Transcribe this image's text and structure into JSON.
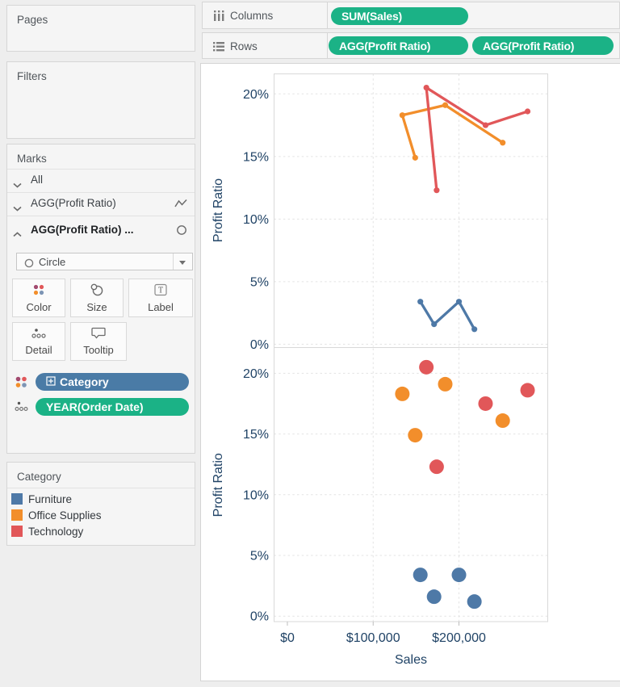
{
  "shelves": {
    "columns_label": "Columns",
    "rows_label": "Rows",
    "columns_pills": [
      "SUM(Sales)"
    ],
    "rows_pills": [
      "AGG(Profit Ratio)",
      "AGG(Profit Ratio)"
    ]
  },
  "cards": {
    "pages_title": "Pages",
    "filters_title": "Filters",
    "marks": {
      "title": "Marks",
      "layers": [
        {
          "label": "All",
          "mark_icon": "none"
        },
        {
          "label": "AGG(Profit Ratio)",
          "mark_icon": "line"
        },
        {
          "label": "AGG(Profit Ratio) ...",
          "mark_icon": "circle"
        }
      ],
      "mark_type_value": "Circle",
      "buttons": [
        "Color",
        "Size",
        "Label",
        "Detail",
        "Tooltip"
      ],
      "pills": [
        {
          "label": "Category",
          "expand_glyph": "⊞",
          "color": "#4a7ba6",
          "left_icon": "color-dots-icon"
        },
        {
          "label": "YEAR(Order Date)",
          "color": "#1bb286",
          "left_icon": "detail-dots-icon"
        }
      ]
    },
    "legend": {
      "title": "Category",
      "items": [
        {
          "label": "Furniture",
          "color": "#4e79a7"
        },
        {
          "label": "Office Supplies",
          "color": "#f28e2b"
        },
        {
          "label": "Technology",
          "color": "#e15759"
        }
      ]
    }
  },
  "colors": {
    "pill_green": "#1bb286",
    "pill_blue": "#4a7ba6",
    "axis_text": "#1f4265",
    "furniture": "#4e79a7",
    "office_supplies": "#f28e2b",
    "technology": "#e15759"
  },
  "chart_data": [
    {
      "type": "line",
      "title": "",
      "xlabel": "",
      "ylabel": "Profit Ratio",
      "xlim": [
        -15500,
        303500
      ],
      "ylim": [
        -0.2,
        21.6
      ],
      "grid": "dashed",
      "x_ticks": [
        {
          "label": "$0",
          "value": 0,
          "gridline": false
        },
        {
          "label": "$100,000",
          "value": 100000,
          "gridline": true
        },
        {
          "label": "$200,000",
          "value": 200000,
          "gridline": true
        }
      ],
      "y_ticks": [
        {
          "label": "0%",
          "value": 0
        },
        {
          "label": "5%",
          "value": 5
        },
        {
          "label": "10%",
          "value": 10
        },
        {
          "label": "15%",
          "value": 15
        },
        {
          "label": "20%",
          "value": 20
        }
      ],
      "series": [
        {
          "name": "Furniture",
          "color": "#4e79a7",
          "points": [
            [
              155000,
              3.4
            ],
            [
              171000,
              1.6
            ],
            [
              200000,
              3.4
            ],
            [
              218000,
              1.2
            ]
          ]
        },
        {
          "name": "Office Supplies",
          "color": "#f28e2b",
          "points": [
            [
              149000,
              14.9
            ],
            [
              134000,
              18.3
            ],
            [
              184000,
              19.1
            ],
            [
              251000,
              16.1
            ]
          ]
        },
        {
          "name": "Technology",
          "color": "#e15759",
          "points": [
            [
              174000,
              12.3
            ],
            [
              162000,
              20.5
            ],
            [
              231000,
              17.5
            ],
            [
              280000,
              18.6
            ]
          ]
        }
      ]
    },
    {
      "type": "scatter",
      "title": "",
      "xlabel": "Sales",
      "ylabel": "Profit Ratio",
      "xlim": [
        -15500,
        303500
      ],
      "ylim": [
        -0.45,
        22.05
      ],
      "grid": "dashed",
      "x_ticks": [
        {
          "label": "$0",
          "value": 0,
          "gridline": false
        },
        {
          "label": "$100,000",
          "value": 100000,
          "gridline": true
        },
        {
          "label": "$200,000",
          "value": 200000,
          "gridline": true
        }
      ],
      "y_ticks": [
        {
          "label": "0%",
          "value": 0
        },
        {
          "label": "5%",
          "value": 5
        },
        {
          "label": "10%",
          "value": 10
        },
        {
          "label": "15%",
          "value": 15
        },
        {
          "label": "20%",
          "value": 20
        }
      ],
      "series": [
        {
          "name": "Furniture",
          "color": "#4e79a7",
          "points": [
            [
              155000,
              3.4
            ],
            [
              171000,
              1.6
            ],
            [
              200000,
              3.4
            ],
            [
              218000,
              1.2
            ]
          ]
        },
        {
          "name": "Office Supplies",
          "color": "#f28e2b",
          "points": [
            [
              149000,
              14.9
            ],
            [
              134000,
              18.3
            ],
            [
              184000,
              19.1
            ],
            [
              251000,
              16.1
            ]
          ]
        },
        {
          "name": "Technology",
          "color": "#e15759",
          "points": [
            [
              174000,
              12.3
            ],
            [
              162000,
              20.5
            ],
            [
              231000,
              17.5
            ],
            [
              280000,
              18.6
            ]
          ]
        }
      ]
    }
  ]
}
